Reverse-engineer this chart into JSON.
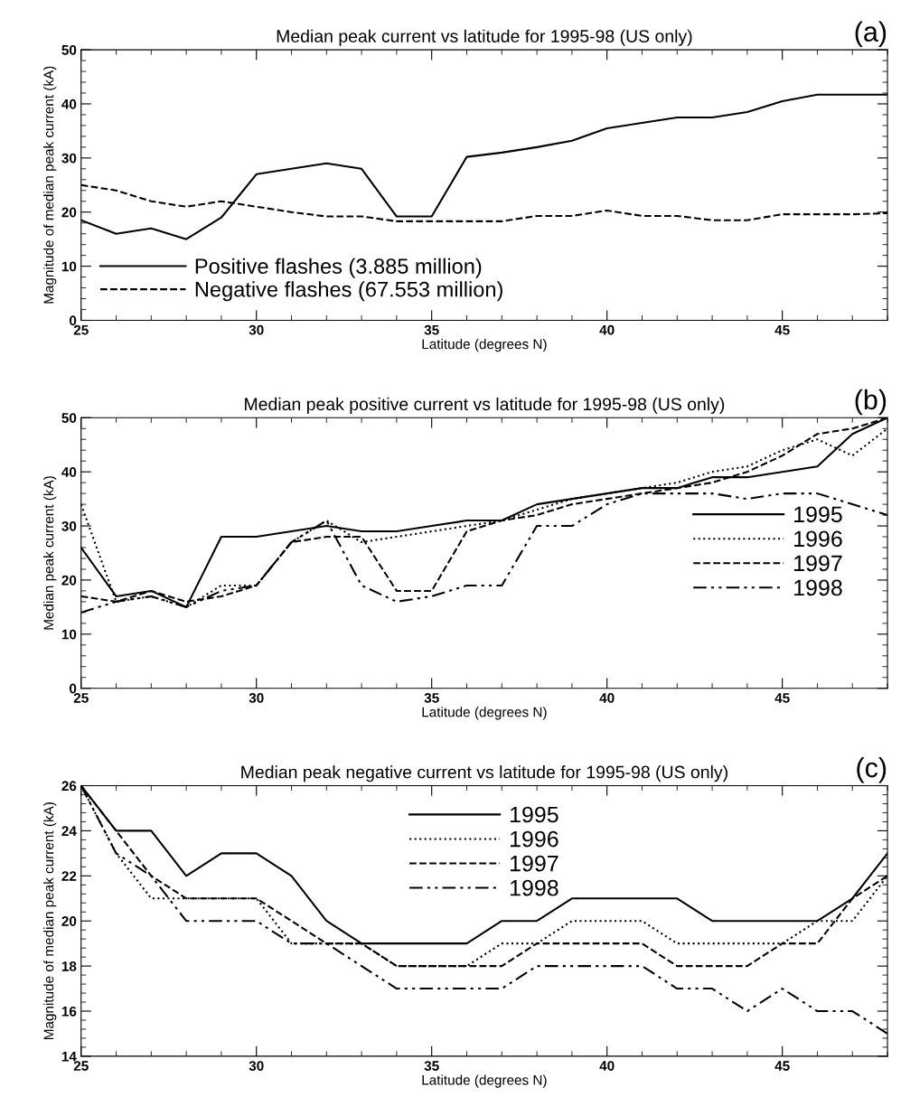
{
  "chart_data": [
    {
      "type": "line",
      "title": "Median peak current vs latitude for 1995-98 (US only)",
      "xlabel": "Latitude (degrees N)",
      "ylabel": "Magnitude of median peak current (kA)",
      "annotations": [
        "(a)"
      ],
      "x": [
        25,
        26,
        27,
        28,
        29,
        30,
        31,
        32,
        33,
        34,
        35,
        36,
        37,
        38,
        39,
        40,
        41,
        42,
        43,
        44,
        45,
        46,
        47,
        48
      ],
      "xlim": [
        25,
        48
      ],
      "xticks": [
        25,
        30,
        35,
        40,
        45
      ],
      "ylim": [
        0,
        50
      ],
      "yticks": [
        0,
        10,
        20,
        30,
        40,
        50
      ],
      "legend": "bottom left",
      "grid": false,
      "series": [
        {
          "name": "Positive flashes (3.885 million)",
          "color": "#000000",
          "line_style": "solid",
          "values": [
            18.5,
            16,
            17,
            15,
            19,
            27,
            28,
            29,
            28,
            19.2,
            19.2,
            30.2,
            31,
            32,
            33.2,
            35.5,
            36.5,
            37.5,
            37.5,
            38.5,
            40.5,
            41.7,
            41.7,
            41.7
          ]
        },
        {
          "name": "Negative flashes (67.553 million)",
          "color": "#000000",
          "line_style": "dashed",
          "values": [
            25,
            24,
            22,
            21,
            22,
            21,
            20,
            19.2,
            19.2,
            18.3,
            18.3,
            18.3,
            18.3,
            19.3,
            19.3,
            20.3,
            19.3,
            19.3,
            18.5,
            18.5,
            19.6,
            19.6,
            19.6,
            19.8
          ]
        }
      ]
    },
    {
      "type": "line",
      "title": "Median peak positive current vs latitude for 1995-98 (US only)",
      "xlabel": "Latitude (degrees N)",
      "ylabel": "Median peak current (kA)",
      "annotations": [
        "(b)"
      ],
      "x": [
        25,
        26,
        27,
        28,
        29,
        30,
        31,
        32,
        33,
        34,
        35,
        36,
        37,
        38,
        39,
        40,
        41,
        42,
        43,
        44,
        45,
        46,
        47,
        48
      ],
      "xlim": [
        25,
        48
      ],
      "xticks": [
        25,
        30,
        35,
        40,
        45
      ],
      "ylim": [
        0,
        50
      ],
      "yticks": [
        0,
        10,
        20,
        30,
        40,
        50
      ],
      "legend": "right",
      "grid": false,
      "series": [
        {
          "name": "1995",
          "color": "#000000",
          "line_style": "solid",
          "values": [
            26,
            17,
            18,
            15,
            28,
            28,
            29,
            30,
            29,
            29,
            30,
            31,
            31,
            34,
            35,
            36,
            37,
            37,
            39,
            39,
            40,
            41,
            47,
            50
          ]
        },
        {
          "name": "1996",
          "color": "#000000",
          "line_style": "dotted",
          "values": [
            34,
            16,
            17,
            15,
            19,
            19,
            27,
            31,
            27,
            28,
            29,
            30,
            31,
            33,
            35,
            36,
            37,
            38,
            40,
            41,
            44,
            46,
            43,
            48
          ]
        },
        {
          "name": "1997",
          "color": "#000000",
          "line_style": "dashed",
          "values": [
            17,
            16,
            18,
            16,
            17,
            19,
            27,
            28,
            28,
            18,
            18,
            29,
            31,
            32,
            34,
            35,
            36,
            37,
            38,
            40,
            43,
            47,
            48,
            50
          ]
        },
        {
          "name": "1998",
          "color": "#000000",
          "line_style": "dashdotdot",
          "values": [
            14,
            16,
            17,
            15,
            18,
            19,
            27,
            31,
            19,
            16,
            17,
            19,
            19,
            30,
            30,
            34,
            36,
            36,
            36,
            35,
            36,
            36,
            34,
            32
          ]
        }
      ]
    },
    {
      "type": "line",
      "title": "Median peak negative current vs latitude for 1995-98 (US only)",
      "xlabel": "Latitude (degrees N)",
      "ylabel": "Magnitude of median peak current (kA)",
      "annotations": [
        "(c)"
      ],
      "x": [
        25,
        26,
        27,
        28,
        29,
        30,
        31,
        32,
        33,
        34,
        35,
        36,
        37,
        38,
        39,
        40,
        41,
        42,
        43,
        44,
        45,
        46,
        47,
        48
      ],
      "xlim": [
        25,
        48
      ],
      "xticks": [
        25,
        30,
        35,
        40,
        45
      ],
      "ylim": [
        14,
        26
      ],
      "yticks": [
        14,
        16,
        18,
        20,
        22,
        24,
        26
      ],
      "legend": "top center",
      "grid": false,
      "series": [
        {
          "name": "1995",
          "color": "#000000",
          "line_style": "solid",
          "values": [
            26,
            24,
            24,
            22,
            23,
            23,
            22,
            20,
            19,
            19,
            19,
            19,
            20,
            20,
            21,
            21,
            21,
            21,
            20,
            20,
            20,
            20,
            21,
            23
          ]
        },
        {
          "name": "1996",
          "color": "#000000",
          "line_style": "dotted",
          "values": [
            26,
            23,
            21,
            21,
            21,
            21,
            19,
            19,
            19,
            18,
            18,
            18,
            19,
            19,
            20,
            20,
            20,
            19,
            19,
            19,
            19,
            20,
            20,
            22
          ]
        },
        {
          "name": "1997",
          "color": "#000000",
          "line_style": "dashed",
          "values": [
            26,
            24,
            22,
            21,
            21,
            21,
            20,
            19,
            19,
            18,
            18,
            18,
            18,
            19,
            19,
            19,
            19,
            18,
            18,
            18,
            19,
            19,
            21,
            22
          ]
        },
        {
          "name": "1998",
          "color": "#000000",
          "line_style": "dashdotdot",
          "values": [
            26,
            23,
            22,
            20,
            20,
            20,
            19,
            19,
            18,
            17,
            17,
            17,
            17,
            18,
            18,
            18,
            18,
            17,
            17,
            16,
            17,
            16,
            16,
            15
          ]
        }
      ]
    }
  ]
}
